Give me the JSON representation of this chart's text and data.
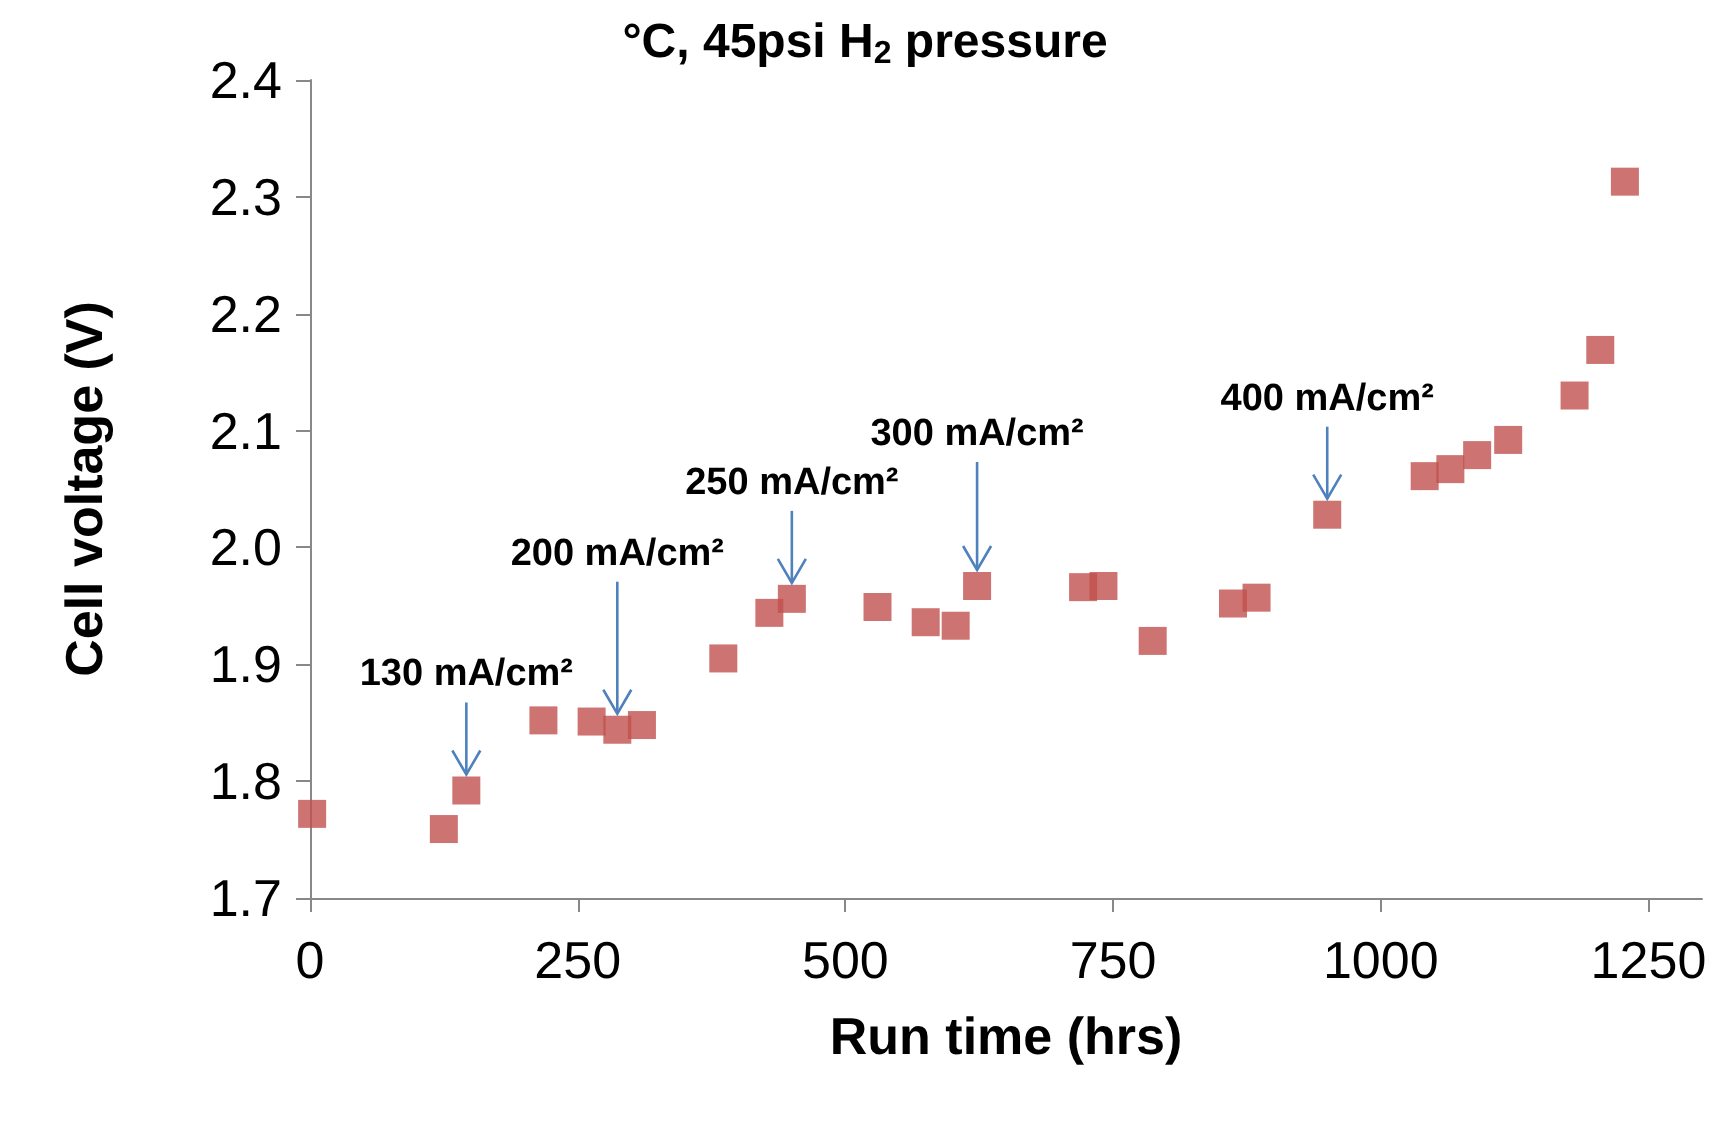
{
  "chart_data": {
    "type": "scatter",
    "title": "°C, 45psi H$_{2}$ pressure",
    "xlabel": "Run time (hrs)",
    "ylabel": "Cell voltage (V)",
    "x": [
      2,
      125,
      146,
      218,
      263,
      287,
      310,
      386,
      429,
      450,
      530,
      575,
      603,
      623,
      722,
      741,
      787,
      862,
      884,
      950,
      1041,
      1065,
      1090,
      1119,
      1181,
      1205,
      1228
    ],
    "values": [
      1.772,
      1.759,
      1.792,
      1.852,
      1.851,
      1.844,
      1.848,
      1.905,
      1.944,
      1.956,
      1.949,
      1.936,
      1.933,
      1.967,
      1.966,
      1.967,
      1.92,
      1.952,
      1.957,
      2.028,
      2.061,
      2.067,
      2.079,
      2.092,
      2.13,
      2.169,
      2.313
    ],
    "color": "#c0504d",
    "marker": "square",
    "xlim": [
      0,
      1300
    ],
    "xticks": [
      0,
      250,
      500,
      750,
      1000,
      1250
    ],
    "ylim": [
      1.7,
      2.4
    ],
    "yticks": [
      {
        "value": 1.7,
        "label": "1.7"
      },
      {
        "value": 1.8,
        "label": "1.8"
      },
      {
        "value": 1.9,
        "label": "1.9"
      },
      {
        "value": 2,
        "label": "2.0"
      },
      {
        "value": 2.1,
        "label": "2.1"
      },
      {
        "value": 2.2,
        "label": "2.2"
      },
      {
        "value": 2.3,
        "label": "2.3"
      },
      {
        "value": 2.4,
        "label": "2.4"
      }
    ],
    "grid": false,
    "annotations": [
      {
        "text": "130 mA/cm²",
        "x": 146,
        "y": 1.792
      },
      {
        "text": "200 mA/cm²",
        "x": 287,
        "y": 1.844
      },
      {
        "text": "250 mA/cm²",
        "x": 450,
        "y": 1.956
      },
      {
        "text": "300 mA/cm²",
        "x": 623,
        "y": 1.967
      },
      {
        "text": "400 mA/cm²",
        "x": 950,
        "y": 2.028
      }
    ]
  }
}
